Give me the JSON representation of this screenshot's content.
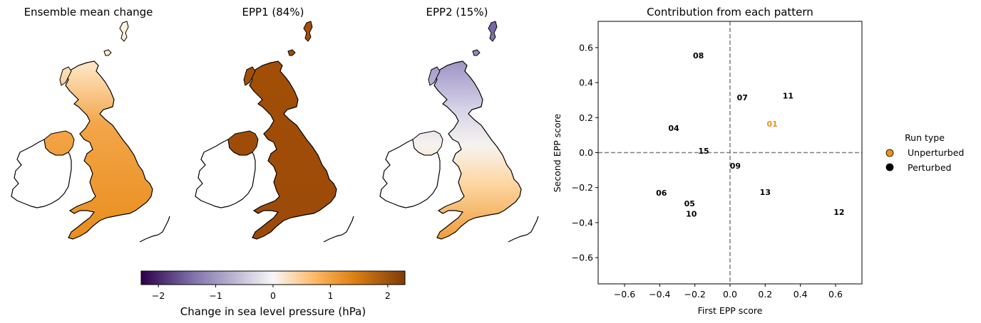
{
  "maps": [
    {
      "title": "Ensemble mean change",
      "fill": "ensemble"
    },
    {
      "title": "EPP1 (84%)",
      "fill": "epp1"
    },
    {
      "title": "EPP2 (15%)",
      "fill": "epp2"
    }
  ],
  "colormap": {
    "stops": [
      "#2d004b",
      "#8073ac",
      "#f7f7f7",
      "#fdb863",
      "#e08214",
      "#7f3b08"
    ],
    "min": -2.3,
    "max": 2.3,
    "ticks": [
      -2,
      -1,
      0,
      1,
      2
    ],
    "tick_labels": [
      "−2",
      "−1",
      "0",
      "1",
      "2"
    ],
    "label": "Change in sea level pressure (hPa)"
  },
  "chart_data": {
    "type": "scatter",
    "title": "Contribution from each pattern",
    "xlabel": "First EPP score",
    "ylabel": "Second EPP score",
    "xlim": [
      -0.75,
      0.75
    ],
    "ylim": [
      -0.75,
      0.75
    ],
    "xticks": [
      -0.6,
      -0.4,
      -0.2,
      0.0,
      0.2,
      0.4,
      0.6
    ],
    "xtick_labels": [
      "−0.6",
      "−0.4",
      "−0.2",
      "0.0",
      "0.2",
      "0.4",
      "0.6"
    ],
    "yticks": [
      -0.6,
      -0.4,
      -0.2,
      0.0,
      0.2,
      0.4,
      0.6
    ],
    "ytick_labels": [
      "−0.6",
      "−0.4",
      "−0.2",
      "0.0",
      "0.2",
      "0.4",
      "0.6"
    ],
    "reference_lines": {
      "x": 0,
      "y": 0,
      "style": "dashed",
      "color": "#808080"
    },
    "points": [
      {
        "label": "01",
        "x": 0.24,
        "y": 0.165,
        "type": "Unperturbed"
      },
      {
        "label": "04",
        "x": -0.32,
        "y": 0.14,
        "type": "Perturbed"
      },
      {
        "label": "05",
        "x": -0.23,
        "y": -0.29,
        "type": "Perturbed"
      },
      {
        "label": "06",
        "x": -0.39,
        "y": -0.23,
        "type": "Perturbed"
      },
      {
        "label": "07",
        "x": 0.07,
        "y": 0.315,
        "type": "Perturbed"
      },
      {
        "label": "08",
        "x": -0.18,
        "y": 0.555,
        "type": "Perturbed"
      },
      {
        "label": "09",
        "x": 0.03,
        "y": -0.075,
        "type": "Perturbed"
      },
      {
        "label": "10",
        "x": -0.22,
        "y": -0.35,
        "type": "Perturbed"
      },
      {
        "label": "11",
        "x": 0.33,
        "y": 0.325,
        "type": "Perturbed"
      },
      {
        "label": "12",
        "x": 0.62,
        "y": -0.34,
        "type": "Perturbed"
      },
      {
        "label": "13",
        "x": 0.2,
        "y": -0.225,
        "type": "Perturbed"
      },
      {
        "label": "15",
        "x": -0.15,
        "y": 0.01,
        "type": "Perturbed"
      }
    ],
    "legend": {
      "title": "Run type",
      "placement": "right",
      "entries": [
        {
          "label": "Unperturbed",
          "color": "#f0901c"
        },
        {
          "label": "Perturbed",
          "color": "#000000"
        }
      ]
    }
  }
}
